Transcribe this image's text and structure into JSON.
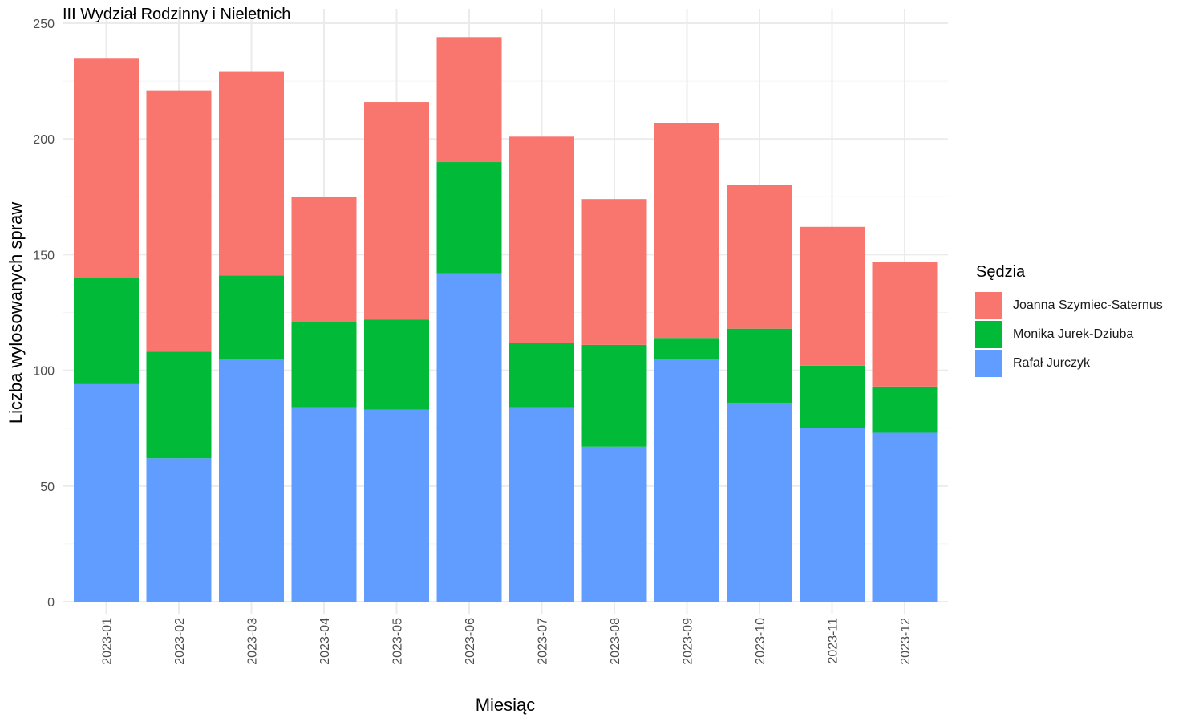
{
  "chart_data": {
    "type": "bar",
    "stacked": true,
    "title": "III Wydział Rodzinny i Nieletnich",
    "xlabel": "Miesiąc",
    "ylabel": "Liczba wylosowanych spraw",
    "ylim": [
      0,
      250
    ],
    "yticks": [
      "0",
      "50",
      "100",
      "150",
      "200",
      "250"
    ],
    "grid": true,
    "legend_title": "Sędzia",
    "legend_position": "right",
    "categories": [
      "2023-01",
      "2023-02",
      "2023-03",
      "2023-04",
      "2023-05",
      "2023-06",
      "2023-07",
      "2023-08",
      "2023-09",
      "2023-10",
      "2023-11",
      "2023-12"
    ],
    "series": [
      {
        "name": "Rafał Jurczyk",
        "color": "#619CFF",
        "values": [
          94,
          62,
          105,
          84,
          83,
          142,
          84,
          67,
          105,
          86,
          75,
          73
        ]
      },
      {
        "name": "Monika Jurek-Dziuba",
        "color": "#00BA38",
        "values": [
          46,
          46,
          36,
          37,
          39,
          48,
          28,
          44,
          9,
          32,
          27,
          20
        ]
      },
      {
        "name": "Joanna Szymiec-Saternus",
        "color": "#F8766D",
        "values": [
          95,
          113,
          88,
          54,
          94,
          54,
          89,
          63,
          93,
          62,
          60,
          54
        ]
      }
    ],
    "legend_order": [
      "Joanna Szymiec-Saternus",
      "Monika Jurek-Dziuba",
      "Rafał Jurczyk"
    ]
  }
}
